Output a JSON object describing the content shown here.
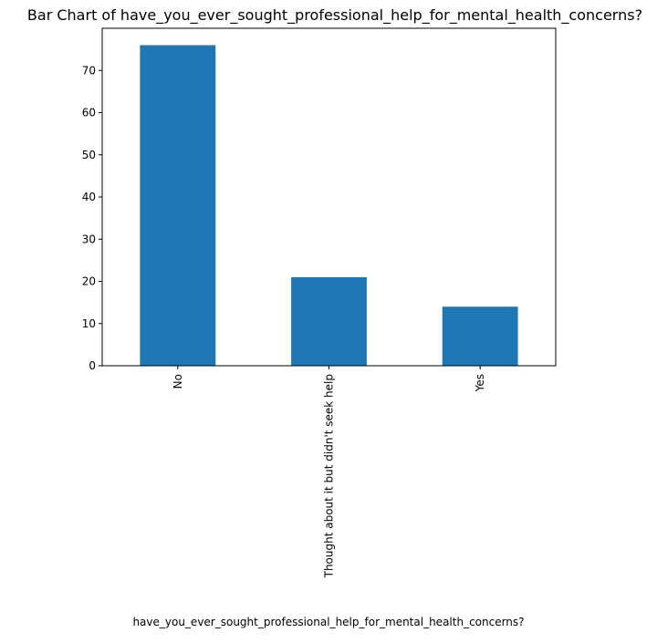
{
  "chart_data": {
    "type": "bar",
    "title": "Bar Chart of have_you_ever_sought_professional_help_for_mental_health_concerns?",
    "xlabel": "have_you_ever_sought_professional_help_for_mental_health_concerns?",
    "ylabel": "",
    "categories": [
      "No",
      "Thought about it but didn't seek help",
      "Yes"
    ],
    "values": [
      76,
      21,
      14
    ],
    "ylim": [
      0,
      80
    ],
    "yticks": [
      0,
      10,
      20,
      30,
      40,
      50,
      60,
      70
    ],
    "grid": false,
    "legend": "none",
    "bar_color": "#1f77b4"
  }
}
